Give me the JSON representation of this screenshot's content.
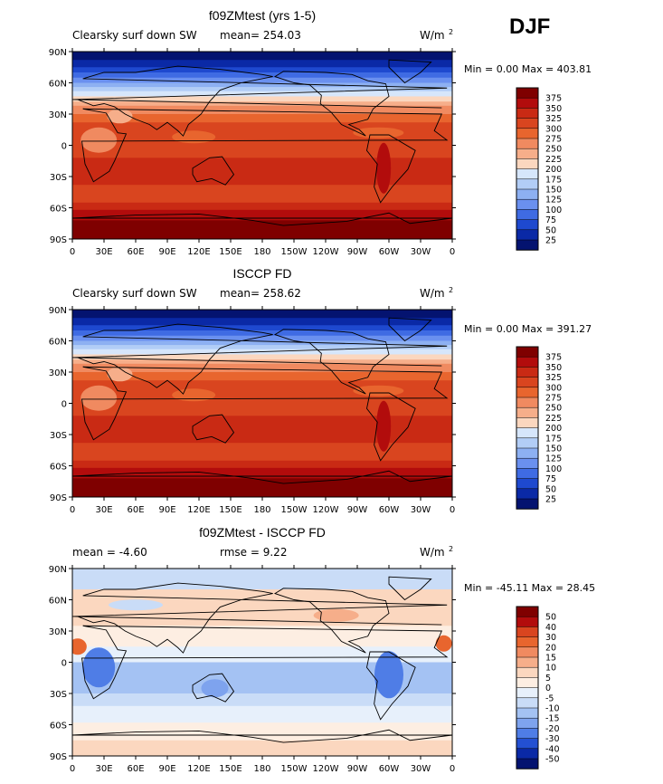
{
  "season": "DJF",
  "lat_ticks": [
    "90N",
    "60N",
    "30N",
    "0",
    "30S",
    "60S",
    "90S"
  ],
  "lon_ticks": [
    "0",
    "30E",
    "60E",
    "90E",
    "120E",
    "150E",
    "180",
    "150W",
    "120W",
    "90W",
    "60W",
    "30W",
    "0"
  ],
  "panels": [
    {
      "title": "f09ZMtest (yrs 1-5)",
      "left_label": "Clearsky surf down SW",
      "center_label": "mean= 254.03",
      "units": "W/m",
      "units_sup": "2",
      "minmax": "Min =    0.00 Max = 403.81",
      "levels": [
        "375",
        "350",
        "325",
        "300",
        "275",
        "250",
        "225",
        "200",
        "175",
        "150",
        "125",
        "100",
        "75",
        "50",
        "25"
      ],
      "colors": [
        "#7f0000",
        "#b20c0c",
        "#c92a14",
        "#d9451f",
        "#e8652e",
        "#f08a60",
        "#f6ae8a",
        "#fbd7bf",
        "#d6e6fb",
        "#b2cdf6",
        "#8db0f2",
        "#6a90ef",
        "#3f6be3",
        "#1e49cf",
        "#0a29a6",
        "#041370"
      ]
    },
    {
      "title": "ISCCP FD",
      "left_label": "Clearsky surf down SW",
      "center_label": "mean= 258.62",
      "units": "W/m",
      "units_sup": "2",
      "minmax": "Min =    0.00 Max = 391.27",
      "levels": [
        "375",
        "350",
        "325",
        "300",
        "275",
        "250",
        "225",
        "200",
        "175",
        "150",
        "125",
        "100",
        "75",
        "50",
        "25"
      ],
      "colors": [
        "#7f0000",
        "#b20c0c",
        "#c92a14",
        "#d9451f",
        "#e8652e",
        "#f08a60",
        "#f6ae8a",
        "#fbd7bf",
        "#d6e6fb",
        "#b2cdf6",
        "#8db0f2",
        "#6a90ef",
        "#3f6be3",
        "#1e49cf",
        "#0a29a6",
        "#041370"
      ]
    },
    {
      "title": "f09ZMtest - ISCCP FD",
      "left_label": "mean =   -4.60",
      "center_label": "rmse =    9.22",
      "units": "W/m",
      "units_sup": "2",
      "minmax": "Min = -45.11 Max =  28.45",
      "levels": [
        "50",
        "40",
        "30",
        "20",
        "15",
        "10",
        "5",
        "0",
        "-5",
        "-10",
        "-15",
        "-20",
        "-30",
        "-40",
        "-50"
      ],
      "colors": [
        "#7f0000",
        "#b20c0c",
        "#d9451f",
        "#e8652e",
        "#f08a60",
        "#f6ae8a",
        "#fbd7bf",
        "#fdeee2",
        "#e7f0fb",
        "#c9dcf7",
        "#a4c2f3",
        "#7ea3ee",
        "#4f7de6",
        "#2350d2",
        "#0a29a6",
        "#041370"
      ]
    }
  ],
  "chart_data": {
    "type": "heatmap",
    "projection": "cylindrical equidistant",
    "x_range": [
      0,
      360
    ],
    "y_range": [
      -90,
      90
    ],
    "panels": [
      {
        "name": "f09ZMtest (yrs 1-5)",
        "mean": 254.03,
        "min": 0.0,
        "max": 403.81
      },
      {
        "name": "ISCCP FD",
        "mean": 258.62,
        "min": 0.0,
        "max": 391.27
      },
      {
        "name": "f09ZMtest - ISCCP FD",
        "mean": -4.6,
        "rmse": 9.22,
        "min": -45.11,
        "max": 28.45
      }
    ]
  }
}
